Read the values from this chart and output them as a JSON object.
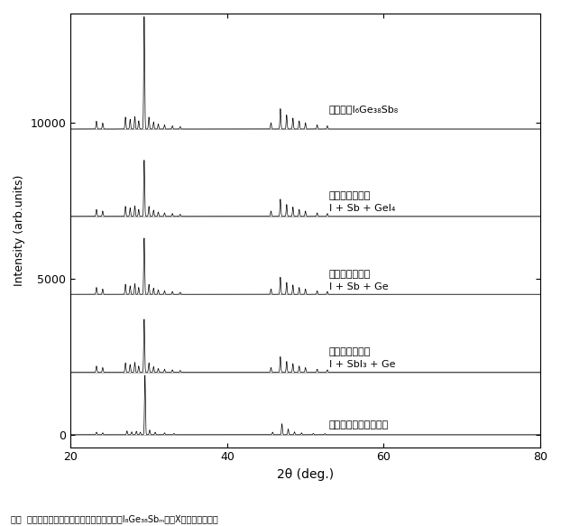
{
  "xlim": [
    20,
    80
  ],
  "ylim": [
    -400,
    13500
  ],
  "yticks": [
    0,
    5000,
    10000
  ],
  "xticks": [
    20,
    40,
    60,
    80
  ],
  "xlabel": "2θ (deg.)",
  "ylabel": "Intensity (arb.units)",
  "background_color": "#ffffff",
  "line_color": "#000000",
  "offsets": [
    0,
    2000,
    4500,
    7000,
    9800
  ],
  "sigma_narrow": 0.06,
  "sigma_wide": 0.12,
  "peaks_simulation": [
    [
      23.3,
      80
    ],
    [
      24.1,
      60
    ],
    [
      27.2,
      120
    ],
    [
      27.8,
      90
    ],
    [
      28.4,
      110
    ],
    [
      28.9,
      80
    ],
    [
      29.5,
      1900
    ],
    [
      30.1,
      150
    ],
    [
      30.8,
      80
    ],
    [
      32.0,
      60
    ],
    [
      33.2,
      40
    ],
    [
      45.8,
      80
    ],
    [
      47.0,
      350
    ],
    [
      47.8,
      180
    ],
    [
      48.6,
      90
    ],
    [
      49.5,
      60
    ],
    [
      51.0,
      40
    ],
    [
      52.5,
      35
    ]
  ],
  "peaks_sample1": [
    [
      23.3,
      200
    ],
    [
      24.1,
      150
    ],
    [
      27.0,
      300
    ],
    [
      27.6,
      250
    ],
    [
      28.2,
      320
    ],
    [
      28.7,
      200
    ],
    [
      29.4,
      1700
    ],
    [
      30.0,
      300
    ],
    [
      30.6,
      180
    ],
    [
      31.2,
      120
    ],
    [
      32.0,
      100
    ],
    [
      33.0,
      80
    ],
    [
      34.0,
      60
    ],
    [
      45.6,
      150
    ],
    [
      46.8,
      500
    ],
    [
      47.6,
      350
    ],
    [
      48.4,
      280
    ],
    [
      49.2,
      200
    ],
    [
      50.0,
      150
    ],
    [
      51.5,
      100
    ],
    [
      52.8,
      80
    ]
  ],
  "peaks_sample2": [
    [
      23.3,
      220
    ],
    [
      24.1,
      170
    ],
    [
      27.0,
      320
    ],
    [
      27.6,
      270
    ],
    [
      28.2,
      340
    ],
    [
      28.7,
      220
    ],
    [
      29.4,
      1800
    ],
    [
      30.0,
      320
    ],
    [
      30.6,
      200
    ],
    [
      31.2,
      140
    ],
    [
      32.0,
      110
    ],
    [
      33.0,
      90
    ],
    [
      34.0,
      65
    ],
    [
      45.6,
      170
    ],
    [
      46.8,
      550
    ],
    [
      47.6,
      380
    ],
    [
      48.4,
      300
    ],
    [
      49.2,
      220
    ],
    [
      50.0,
      170
    ],
    [
      51.5,
      110
    ],
    [
      52.8,
      90
    ]
  ],
  "peaks_sample3": [
    [
      23.3,
      220
    ],
    [
      24.1,
      170
    ],
    [
      27.0,
      320
    ],
    [
      27.6,
      270
    ],
    [
      28.2,
      340
    ],
    [
      28.7,
      220
    ],
    [
      29.4,
      1800
    ],
    [
      30.0,
      320
    ],
    [
      30.6,
      200
    ],
    [
      31.2,
      140
    ],
    [
      32.0,
      110
    ],
    [
      33.0,
      90
    ],
    [
      34.0,
      65
    ],
    [
      45.6,
      170
    ],
    [
      46.8,
      550
    ],
    [
      47.6,
      380
    ],
    [
      48.4,
      300
    ],
    [
      49.2,
      220
    ],
    [
      50.0,
      170
    ],
    [
      51.5,
      110
    ],
    [
      52.8,
      90
    ]
  ],
  "peaks_fabricated": [
    [
      23.3,
      250
    ],
    [
      24.1,
      190
    ],
    [
      27.0,
      380
    ],
    [
      27.6,
      310
    ],
    [
      28.2,
      400
    ],
    [
      28.7,
      260
    ],
    [
      29.4,
      3600
    ],
    [
      30.0,
      380
    ],
    [
      30.6,
      230
    ],
    [
      31.2,
      160
    ],
    [
      32.0,
      130
    ],
    [
      33.0,
      100
    ],
    [
      34.0,
      75
    ],
    [
      45.6,
      200
    ],
    [
      46.8,
      650
    ],
    [
      47.6,
      450
    ],
    [
      48.4,
      350
    ],
    [
      49.2,
      260
    ],
    [
      50.0,
      200
    ],
    [
      51.5,
      130
    ],
    [
      52.8,
      100
    ]
  ],
  "label_simulation": "シミュレーション結果",
  "label_sample1_l1": "熱電変換素子１",
  "label_sample1_l2": "I + SbI₃ + Ge",
  "label_sample2_l1": "熱電変換素子２",
  "label_sample2_l2": "I + Sb + Ge",
  "label_sample3_l1": "熱電変換素子３",
  "label_sample3_l2": "I + Sb + GeI₄",
  "label_fabricated": "作製したI₆Ge₃₈Sb₈",
  "caption": "図１  作製した熱電変換素子１，同２，同３（I₈Ge₃₈Sbₘ）のX線回折パターン"
}
